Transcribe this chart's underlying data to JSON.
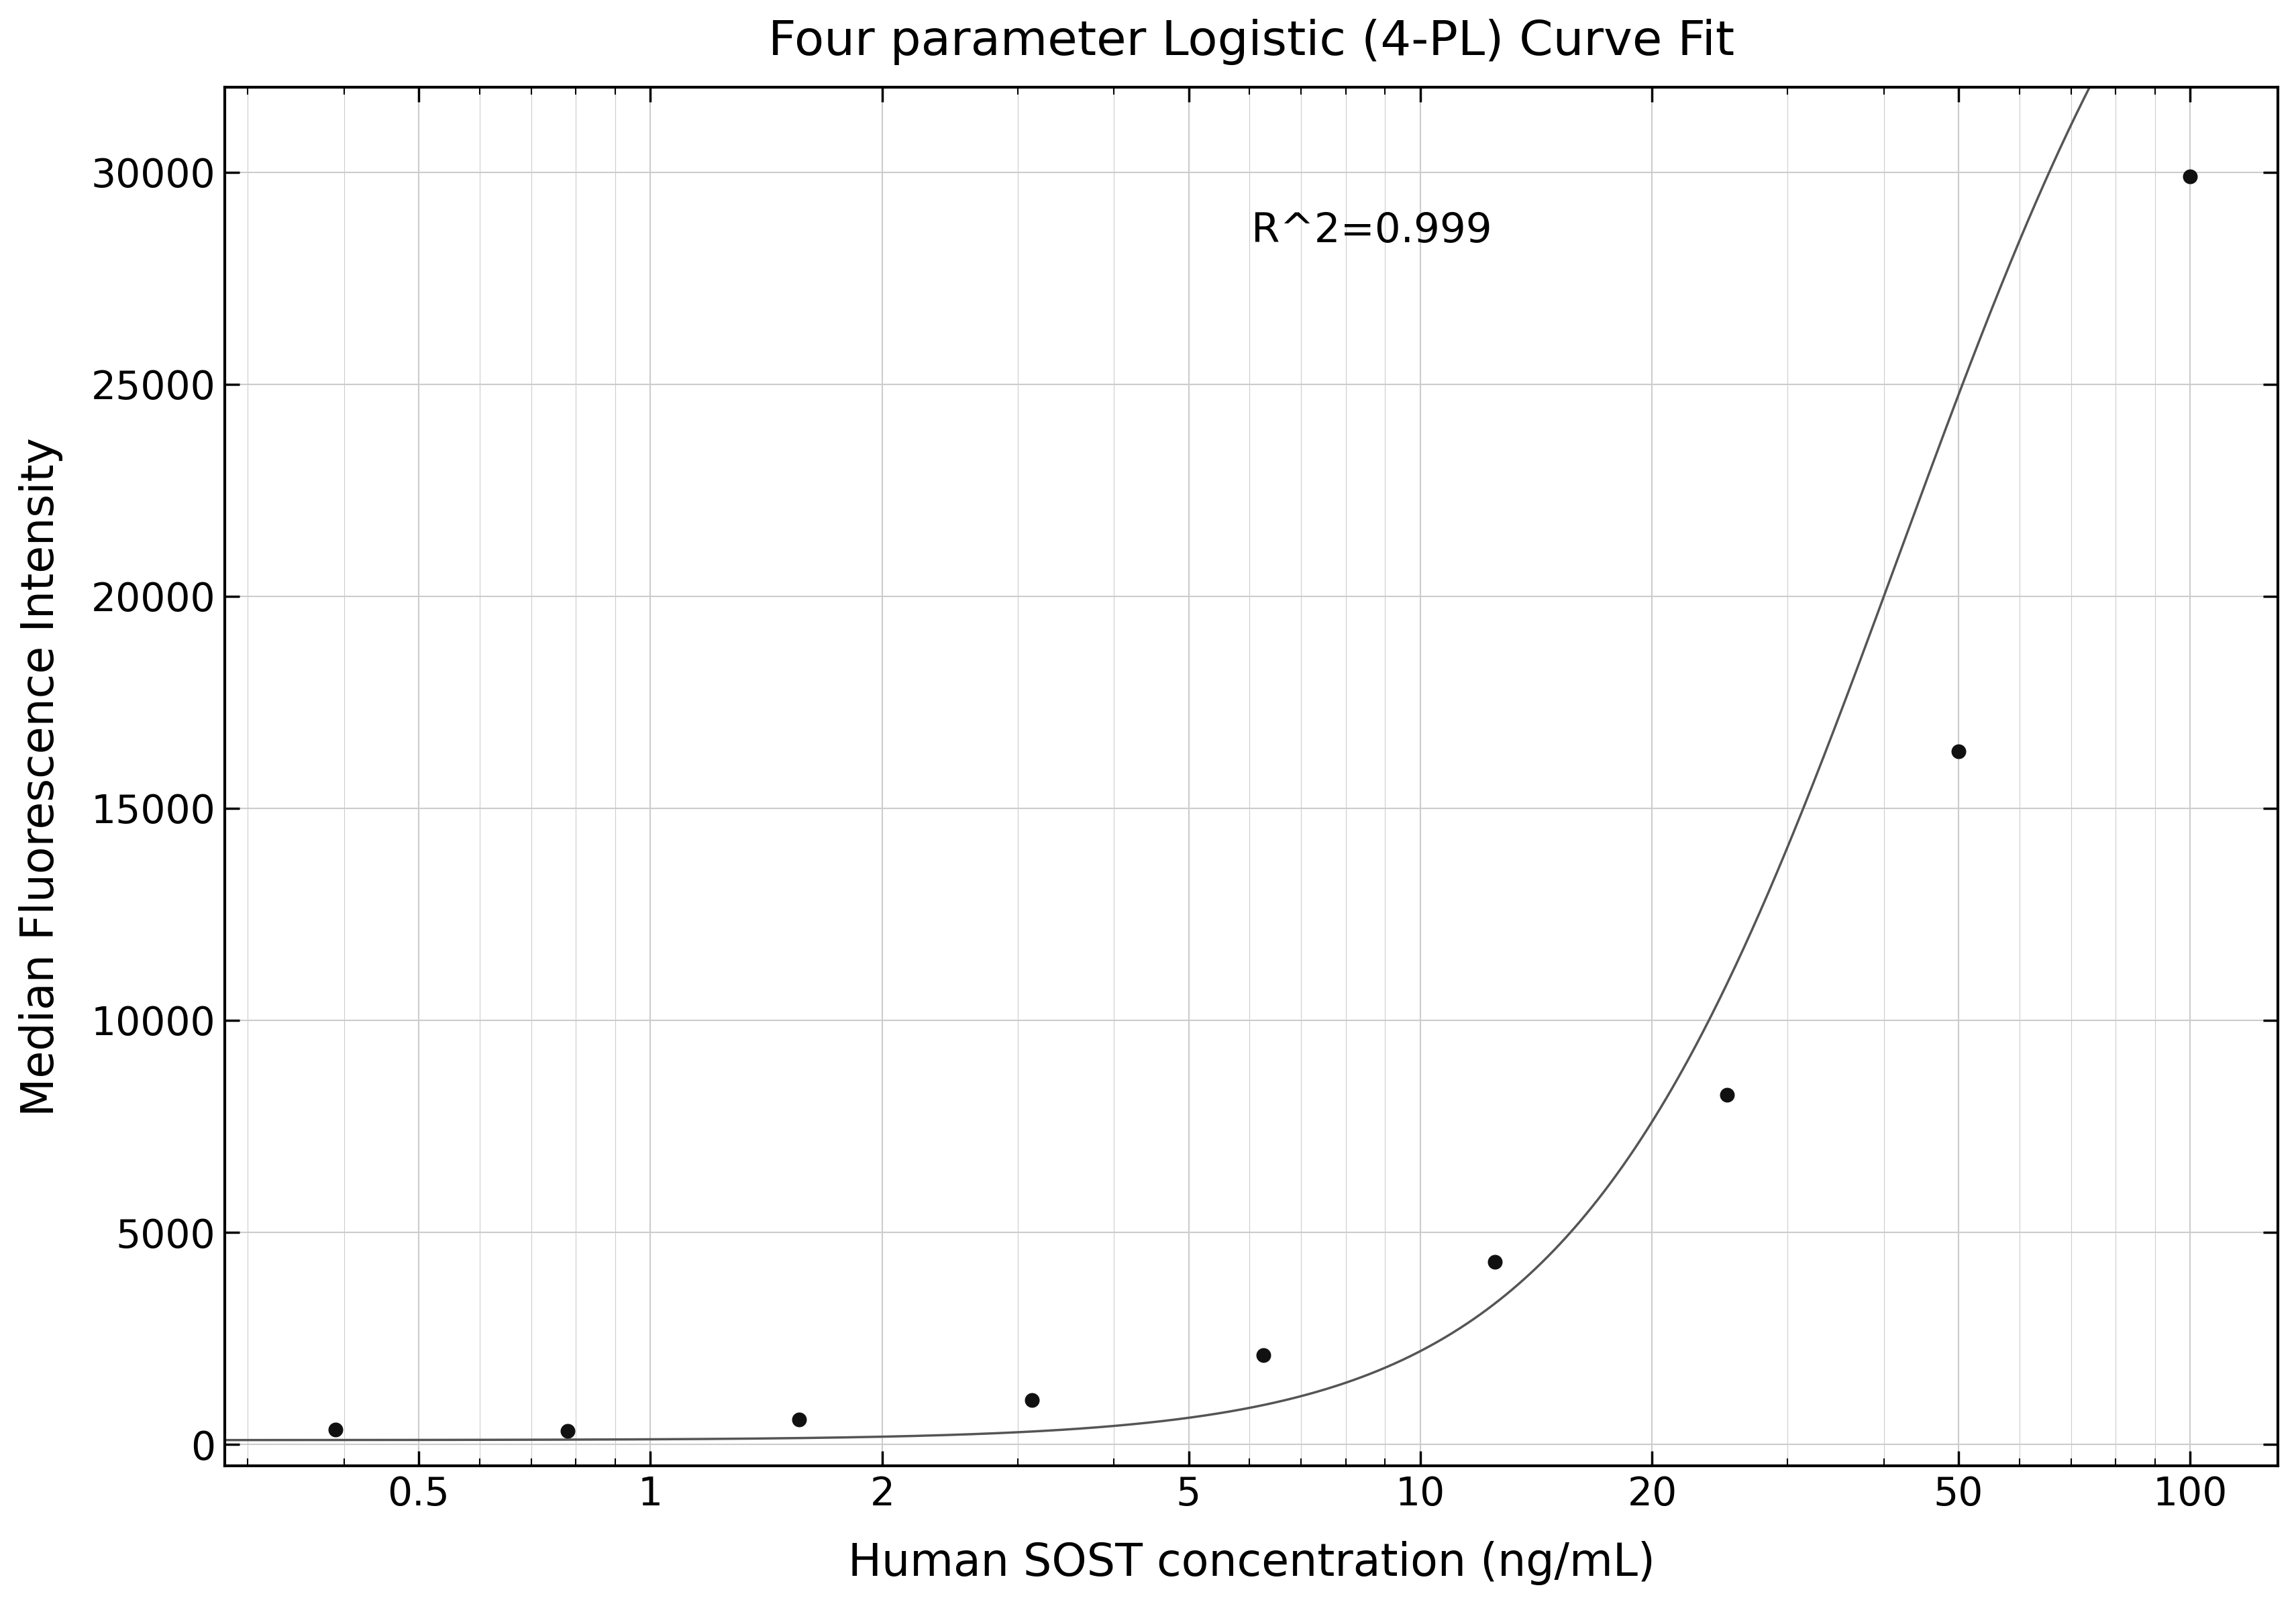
{
  "title": "Four parameter Logistic (4-PL) Curve Fit",
  "xlabel": "Human SOST concentration (ng/mL)",
  "ylabel": "Median Fluorescence Intensity",
  "r_squared_text": "R^2=0.999",
  "x_data": [
    0.39,
    0.78,
    1.56,
    3.13,
    6.25,
    12.5,
    25.0,
    50.0,
    100.0
  ],
  "y_data": [
    350,
    320,
    590,
    1050,
    2100,
    4300,
    8250,
    16350,
    29900
  ],
  "ylim": [
    -500,
    32000
  ],
  "yticks": [
    0,
    5000,
    10000,
    15000,
    20000,
    25000,
    30000
  ],
  "xticks": [
    0.5,
    1,
    2,
    5,
    10,
    20,
    50,
    100
  ],
  "xlim": [
    0.28,
    130
  ],
  "background_color": "#ffffff",
  "grid_color": "#cccccc",
  "line_color": "#555555",
  "dot_color": "#111111",
  "title_fontsize": 52,
  "label_fontsize": 48,
  "tick_fontsize": 42,
  "annotation_fontsize": 44,
  "4pl_A": 100.0,
  "4pl_B": 2.05,
  "4pl_C": 42.0,
  "4pl_D": 42000.0
}
